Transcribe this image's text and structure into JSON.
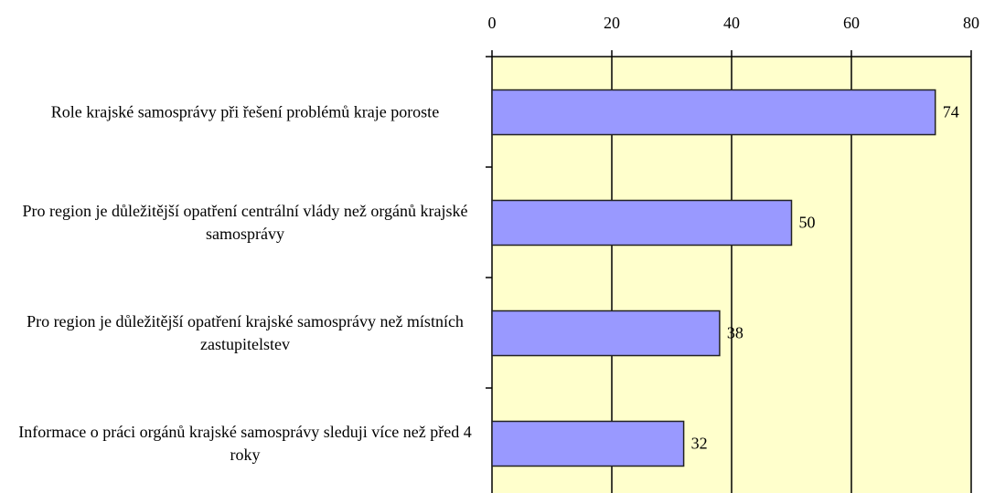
{
  "chart_data": {
    "type": "barh",
    "categories": [
      "Role krajské samosprávy při řešení problémů kraje poroste",
      "Pro region je důležitější opatření centrální vlády než orgánů krajské samosprávy",
      "Pro region je důležitější opatření krajské samosprávy než místních zastupitelstev",
      "Informace o práci orgánů krajské samosprávy sleduji více než před 4 roky"
    ],
    "values": [
      74,
      50,
      38,
      32
    ],
    "color": "#9999ff",
    "plot_background": "#ffffcc",
    "xlim": [
      0,
      80
    ],
    "xticks": [
      0,
      20,
      40,
      60,
      80
    ],
    "grid": true
  }
}
